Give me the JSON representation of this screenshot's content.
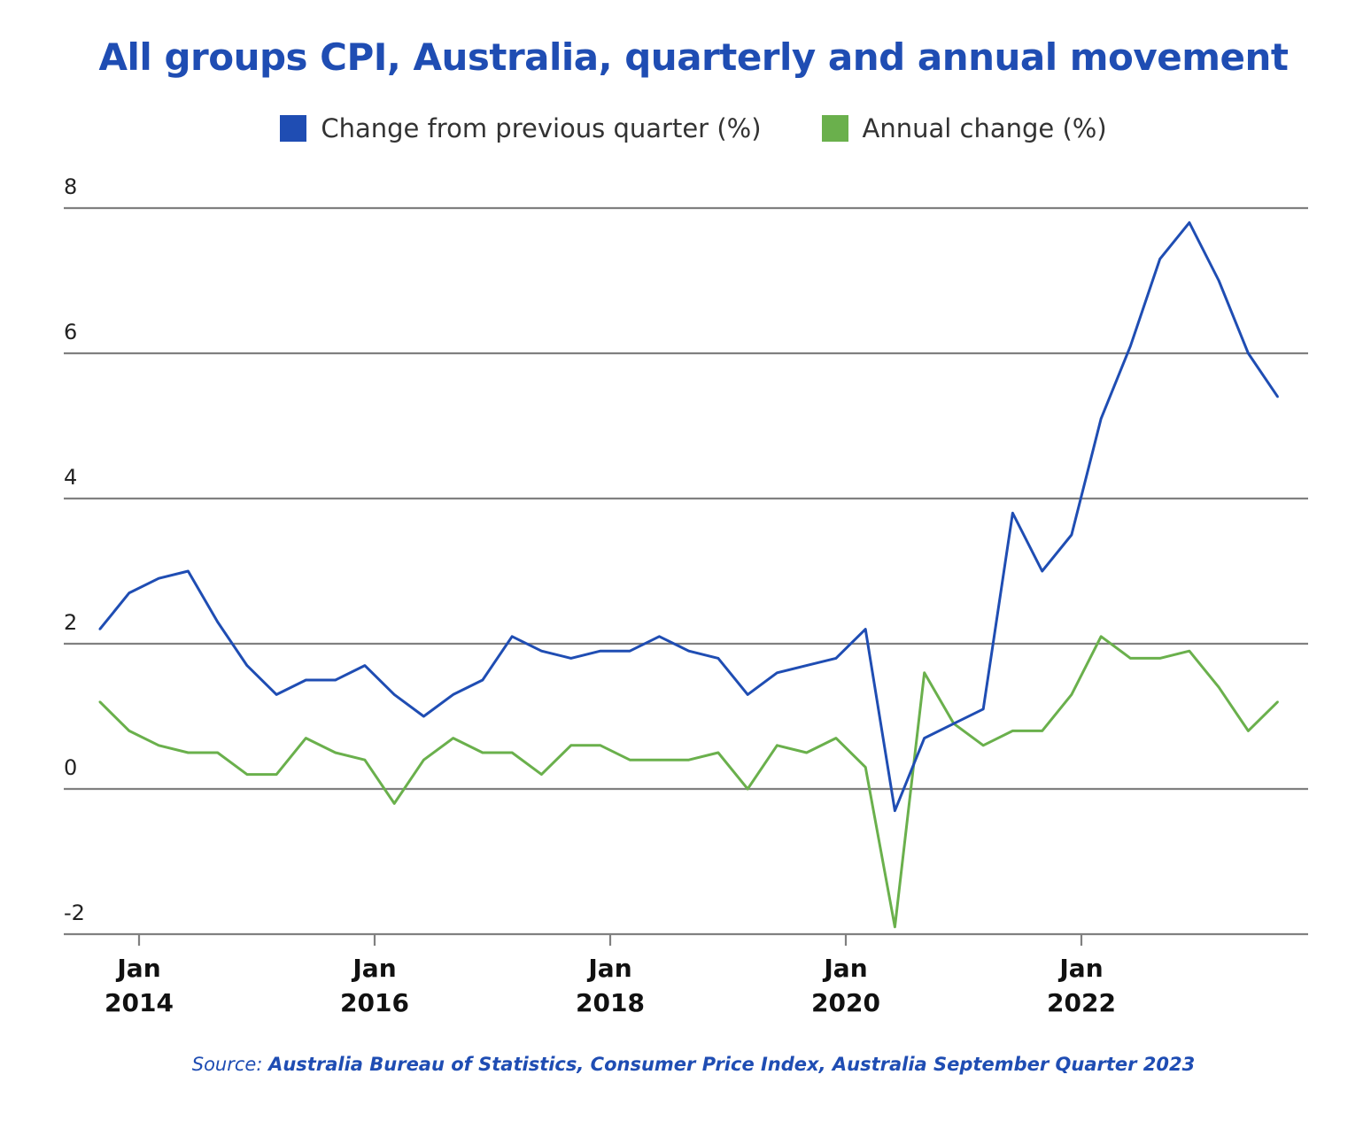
{
  "chart_data": {
    "type": "line",
    "title": "All groups CPI, Australia, quarterly and annual movement",
    "legend_position": "top",
    "grid": true,
    "ylim": [
      -2,
      8
    ],
    "yticks": [
      "8",
      "6",
      "4",
      "2",
      "0",
      "-2"
    ],
    "xticks": [
      {
        "month": "Jan",
        "year": "2014"
      },
      {
        "month": "Jan",
        "year": "2016"
      },
      {
        "month": "Jan",
        "year": "2018"
      },
      {
        "month": "Jan",
        "year": "2020"
      },
      {
        "month": "Jan",
        "year": "2022"
      }
    ],
    "x": [
      "Sep 2013",
      "Dec 2013",
      "Mar 2014",
      "Jun 2014",
      "Sep 2014",
      "Dec 2014",
      "Mar 2015",
      "Jun 2015",
      "Sep 2015",
      "Dec 2015",
      "Mar 2016",
      "Jun 2016",
      "Sep 2016",
      "Dec 2016",
      "Mar 2017",
      "Jun 2017",
      "Sep 2017",
      "Dec 2017",
      "Mar 2018",
      "Jun 2018",
      "Sep 2018",
      "Dec 2018",
      "Mar 2019",
      "Jun 2019",
      "Sep 2019",
      "Dec 2019",
      "Mar 2020",
      "Jun 2020",
      "Sep 2020",
      "Dec 2020",
      "Mar 2021",
      "Jun 2021",
      "Sep 2021",
      "Dec 2021",
      "Mar 2022",
      "Jun 2022",
      "Sep 2022",
      "Dec 2022",
      "Mar 2023",
      "Jun 2023",
      "Sep 2023"
    ],
    "series": [
      {
        "name": "Change from previous quarter (%)",
        "color": "#1f4db3",
        "values": [
          2.2,
          2.7,
          2.9,
          3.0,
          2.3,
          1.7,
          1.3,
          1.5,
          1.5,
          1.7,
          1.3,
          1.0,
          1.3,
          1.5,
          2.1,
          1.9,
          1.8,
          1.9,
          1.9,
          2.1,
          1.9,
          1.8,
          1.3,
          1.6,
          1.7,
          1.8,
          2.2,
          -0.3,
          0.7,
          0.9,
          1.1,
          3.8,
          3.0,
          3.5,
          5.1,
          6.1,
          7.3,
          7.8,
          7.0,
          6.0,
          5.4
        ]
      },
      {
        "name": "Annual change (%)",
        "color": "#6ab04c",
        "values": [
          1.2,
          0.8,
          0.6,
          0.5,
          0.5,
          0.2,
          0.2,
          0.7,
          0.5,
          0.4,
          -0.2,
          0.4,
          0.7,
          0.5,
          0.5,
          0.2,
          0.6,
          0.6,
          0.4,
          0.4,
          0.4,
          0.5,
          0.0,
          0.6,
          0.5,
          0.7,
          0.3,
          -1.9,
          1.6,
          0.9,
          0.6,
          0.8,
          0.8,
          1.3,
          2.1,
          1.8,
          1.8,
          1.9,
          1.4,
          0.8,
          1.2
        ]
      }
    ]
  },
  "source": {
    "prefix": "Source:",
    "text": "Australia Bureau of Statistics, Consumer Price Index, Australia September Quarter 2023"
  }
}
